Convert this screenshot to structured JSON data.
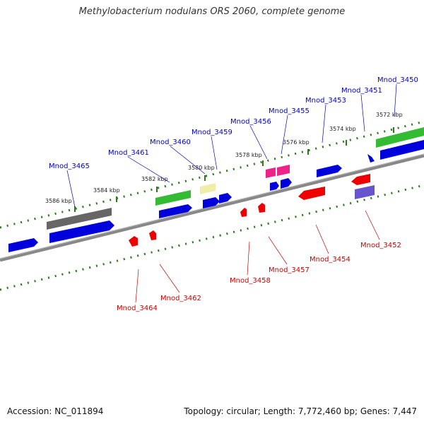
{
  "title": "Methylobacterium nodulans ORS 2060, complete genome",
  "footer": {
    "accession": "Accession: NC_011894",
    "topology": "Topology: circular; Length: 7,772,460 bp; Genes: 7,447"
  },
  "scale_labels": [
    "3586 kbp",
    "3584 kbp",
    "3582 kbp",
    "3580 kbp",
    "3578 kbp",
    "3576 kbp",
    "3574 kbp",
    "3572 kbp"
  ],
  "colors": {
    "top_labels": "#0000cc",
    "bottom_labels": "#cc0000",
    "tick": "#2a7a1a",
    "backbone": "#888888"
  },
  "top_genes": [
    "Mnod_3465",
    "Mnod_3461",
    "Mnod_3460",
    "Mnod_3459",
    "Mnod_3456",
    "Mnod_3455",
    "Mnod_3453",
    "Mnod_3451",
    "Mnod_3450"
  ],
  "bottom_genes": [
    "Mnod_3464",
    "Mnod_3462",
    "Mnod_3458",
    "Mnod_3457",
    "Mnod_3454",
    "Mnod_3452"
  ]
}
